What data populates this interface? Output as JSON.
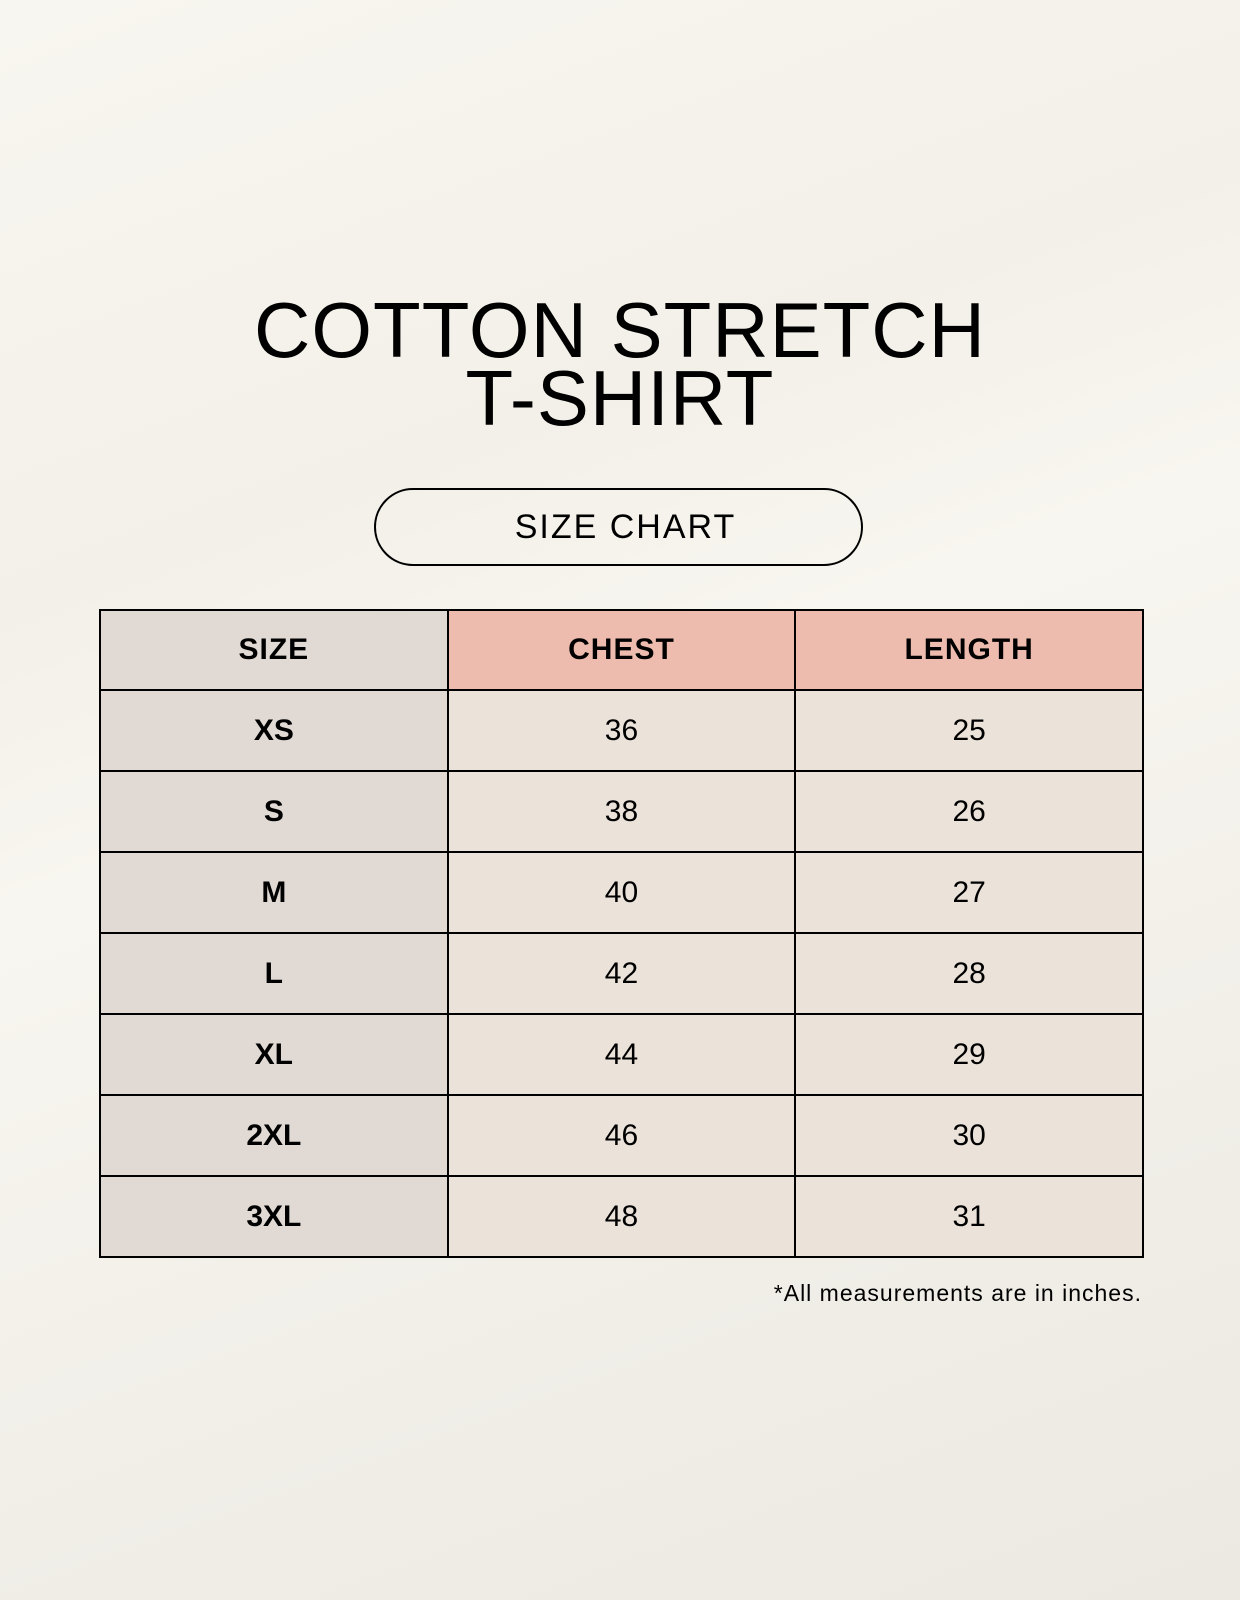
{
  "title_line1": "COTTON STRETCH",
  "title_line2": "T-SHIRT",
  "badge": "SIZE CHART",
  "table": {
    "headers": [
      "SIZE",
      "CHEST",
      "LENGTH"
    ],
    "rows": [
      [
        "XS",
        "36",
        "25"
      ],
      [
        "S",
        "38",
        "26"
      ],
      [
        "M",
        "40",
        "27"
      ],
      [
        "L",
        "42",
        "28"
      ],
      [
        "XL",
        "44",
        "29"
      ],
      [
        "2XL",
        "46",
        "30"
      ],
      [
        "3XL",
        "48",
        "31"
      ]
    ]
  },
  "footnote": "*All measurements are in inches.",
  "colors": {
    "size_column": "#e0d9d4",
    "header_accent": "#edbcae",
    "cell": "#ebe3da"
  }
}
